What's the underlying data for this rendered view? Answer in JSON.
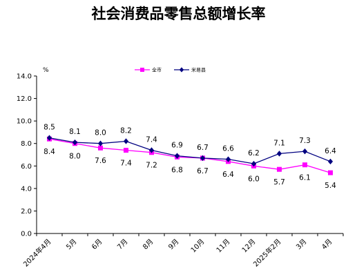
{
  "chart_data": {
    "type": "line",
    "title": "社会消费品零售总额增长率",
    "ylabel": "%",
    "xlabel": "",
    "categories": [
      "2024年4月",
      "5月",
      "6月",
      "7月",
      "8月",
      "9月",
      "10月",
      "11月",
      "12月",
      "2025年2月",
      "3月",
      "4月"
    ],
    "ylim": [
      0,
      14
    ],
    "yticks": [
      0.0,
      2.0,
      4.0,
      6.0,
      8.0,
      10.0,
      12.0,
      14.0
    ],
    "grid": false,
    "legend": "top-center",
    "series": [
      {
        "name": "全市",
        "color": "#ff00ff",
        "marker": "square",
        "values": [
          8.4,
          8.0,
          7.6,
          7.4,
          7.2,
          6.8,
          6.7,
          6.4,
          6.0,
          5.7,
          6.1,
          5.4
        ],
        "labels": [
          "8.4",
          "8.0",
          "7.6",
          "7.4",
          "7.2",
          "6.8",
          "6.7",
          "6.4",
          "6.0",
          "5.7",
          "6.1",
          "5.4"
        ]
      },
      {
        "name": "米易县",
        "color": "#000080",
        "marker": "diamond",
        "values": [
          8.5,
          8.1,
          8.0,
          8.2,
          7.4,
          6.9,
          6.7,
          6.6,
          6.2,
          7.1,
          7.3,
          6.4
        ],
        "labels": [
          "8.5",
          "8.1",
          "8.0",
          "8.2",
          "7.4",
          "6.9",
          "6.7",
          "6.6",
          "6.2",
          "7.1",
          "7.3",
          "6.4"
        ]
      }
    ]
  }
}
